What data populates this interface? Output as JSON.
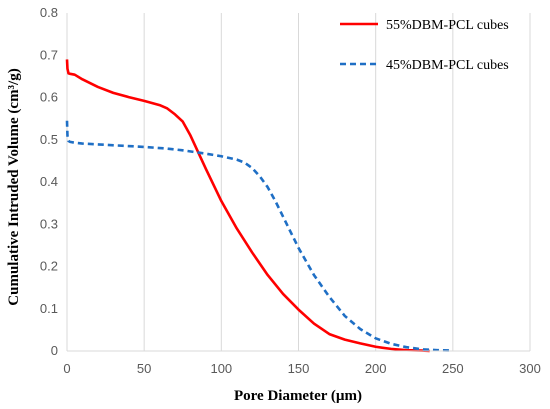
{
  "chart_data": {
    "type": "line",
    "title": "",
    "xlabel": "Pore Diameter (µm)",
    "ylabel": "Cumulative Intruded Volume (cm³/g)",
    "xlim": [
      0,
      300
    ],
    "ylim": [
      0,
      0.8
    ],
    "x_ticks": [
      "0",
      "50",
      "100",
      "150",
      "200",
      "250",
      "300"
    ],
    "y_ticks": [
      "0",
      "0.1",
      "0.2",
      "0.3",
      "0.4",
      "0.5",
      "0.6",
      "0.7",
      "0.8"
    ],
    "grid": "vertical",
    "legend_position": "top-right",
    "series": [
      {
        "name": "55%DBM-PCL cubes",
        "color": "#ff0000",
        "style": "solid",
        "x": [
          0,
          0.3,
          1,
          2,
          5,
          10,
          20,
          30,
          40,
          50,
          60,
          65,
          70,
          75,
          80,
          90,
          100,
          110,
          120,
          130,
          140,
          150,
          160,
          170,
          180,
          190,
          200,
          210,
          220,
          230,
          235
        ],
        "y": [
          0.69,
          0.668,
          0.657,
          0.656,
          0.654,
          0.643,
          0.625,
          0.611,
          0.601,
          0.592,
          0.582,
          0.574,
          0.56,
          0.543,
          0.51,
          0.431,
          0.355,
          0.29,
          0.233,
          0.18,
          0.135,
          0.098,
          0.065,
          0.04,
          0.027,
          0.018,
          0.01,
          0.005,
          0.002,
          0.001,
          0.0
        ]
      },
      {
        "name": "45%DBM-PCL cubes",
        "color": "#1f6fc5",
        "style": "dashed",
        "x": [
          0,
          0.3,
          1,
          2,
          5,
          10,
          25,
          50,
          65,
          75,
          90,
          100,
          110,
          115,
          120,
          125,
          130,
          135,
          140,
          150,
          160,
          170,
          180,
          190,
          200,
          210,
          220,
          230,
          240,
          250
        ],
        "y": [
          0.545,
          0.51,
          0.497,
          0.495,
          0.493,
          0.491,
          0.488,
          0.483,
          0.479,
          0.475,
          0.467,
          0.461,
          0.453,
          0.446,
          0.433,
          0.413,
          0.388,
          0.355,
          0.318,
          0.244,
          0.18,
          0.128,
          0.083,
          0.052,
          0.03,
          0.017,
          0.009,
          0.004,
          0.002,
          0.001
        ]
      }
    ]
  }
}
